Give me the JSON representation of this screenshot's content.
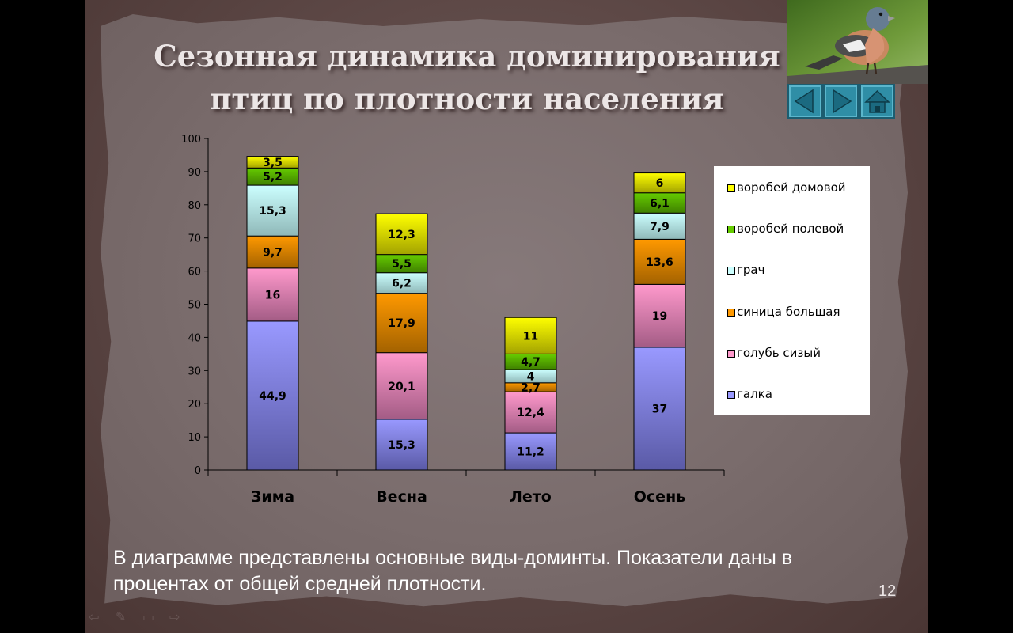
{
  "slide": {
    "title_line1": "Сезонная динамика доминирования",
    "title_line2": "птиц по плотности населения",
    "caption_line1": "В диаграмме представлены основные виды-доминты. Показатели даны в",
    "caption_line2": "процентах от общей средней плотности.",
    "page_number": "12"
  },
  "nav": {
    "prev_icon": "arrow-left-icon",
    "next_icon": "arrow-right-icon",
    "home_icon": "home-icon",
    "button_color": "#2f8ea6"
  },
  "chart_data": {
    "type": "bar",
    "stacked": true,
    "categories": [
      "Зима",
      "Весна",
      "Лето",
      "Осень"
    ],
    "ylim": [
      0,
      100
    ],
    "yticks": [
      0,
      10,
      20,
      30,
      40,
      50,
      60,
      70,
      80,
      90,
      100
    ],
    "legend_position": "right",
    "series": [
      {
        "name": "галка",
        "values": [
          44.9,
          15.3,
          11.2,
          37
        ],
        "labels": [
          "44,9",
          "15,3",
          "11,2",
          "37"
        ],
        "color": "#9999ff",
        "color_dark": "#5a5aa6"
      },
      {
        "name": "голубь сизый",
        "values": [
          16,
          20.1,
          12.4,
          19
        ],
        "labels": [
          "16",
          "20,1",
          "12,4",
          "19"
        ],
        "color": "#ff99cc",
        "color_dark": "#a35c85"
      },
      {
        "name": "синица большая",
        "values": [
          9.7,
          17.9,
          2.7,
          13.6
        ],
        "labels": [
          "9,7",
          "17,9",
          "2,7",
          "13,6"
        ],
        "color": "#ff9900",
        "color_dark": "#a36200"
      },
      {
        "name": "грач",
        "values": [
          15.3,
          6.2,
          4,
          7.9
        ],
        "labels": [
          "15,3",
          "6,2",
          "4",
          "7,9"
        ],
        "color": "#ccffff",
        "color_dark": "#8fb8b8"
      },
      {
        "name": "воробей полевой",
        "values": [
          5.2,
          5.5,
          4.7,
          6.1
        ],
        "labels": [
          "5,2",
          "5,5",
          "4,7",
          "6,1"
        ],
        "color": "#66cc00",
        "color_dark": "#3f8000"
      },
      {
        "name": "воробей домовой",
        "values": [
          3.5,
          12.3,
          11,
          6
        ],
        "labels": [
          "3,5",
          "12,3",
          "11",
          "6"
        ],
        "color": "#ffff00",
        "color_dark": "#a3a300"
      }
    ]
  }
}
